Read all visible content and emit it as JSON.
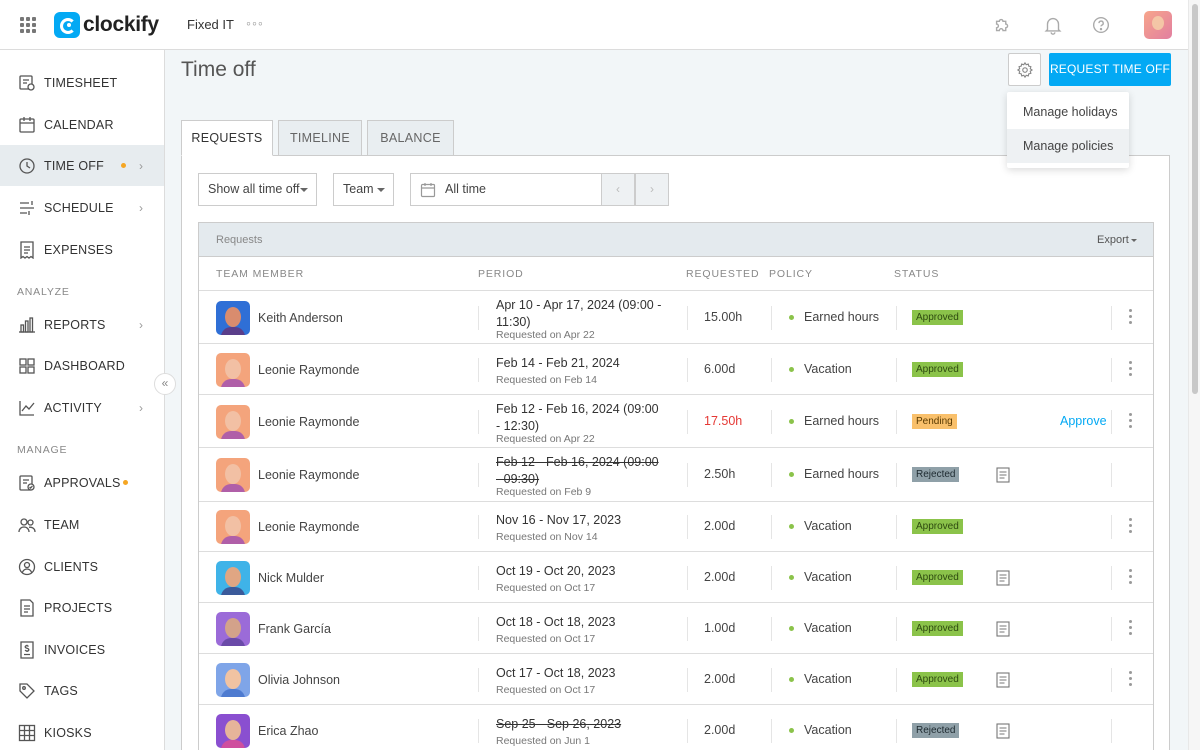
{
  "app": {
    "brand": "clockify",
    "workspace": "Fixed IT",
    "more": "◦◦◦"
  },
  "sidebar": {
    "items": [
      {
        "label": "TIMESHEET"
      },
      {
        "label": "CALENDAR"
      },
      {
        "label": "TIME OFF"
      },
      {
        "label": "SCHEDULE"
      },
      {
        "label": "EXPENSES"
      },
      {
        "label": "REPORTS"
      },
      {
        "label": "DASHBOARD"
      },
      {
        "label": "ACTIVITY"
      },
      {
        "label": "APPROVALS"
      },
      {
        "label": "TEAM"
      },
      {
        "label": "CLIENTS"
      },
      {
        "label": "PROJECTS"
      },
      {
        "label": "INVOICES"
      },
      {
        "label": "TAGS"
      },
      {
        "label": "KIOSKS"
      }
    ],
    "sections": {
      "analyze": "ANALYZE",
      "manage": "MANAGE"
    },
    "collapse": "«"
  },
  "page": {
    "title": "Time off",
    "request_button": "REQUEST TIME OFF",
    "menu": {
      "manage_holidays": "Manage holidays",
      "manage_policies": "Manage policies"
    },
    "tabs": [
      "REQUESTS",
      "TIMELINE",
      "BALANCE"
    ],
    "filters": {
      "show": "Show all time off",
      "team": "Team",
      "date": "All time",
      "prev": "‹",
      "next": "›"
    }
  },
  "table": {
    "caption": "Requests",
    "export": "Export",
    "columns": {
      "member": "TEAM MEMBER",
      "period": "PERIOD",
      "requested": "REQUESTED",
      "policy": "POLICY",
      "status": "STATUS"
    },
    "approve_label": "Approve",
    "rows": [
      {
        "name": "Keith Anderson",
        "period": "Apr 10 - Apr 17, 2024 (09:00 - 11:30)",
        "requested_on": "Requested on Apr 22",
        "amount": "15.00h",
        "policy": "Earned hours",
        "status": "Approved"
      },
      {
        "name": "Leonie Raymonde",
        "period": "Feb 14 - Feb 21, 2024",
        "requested_on": "Requested on Feb 14",
        "amount": "6.00d",
        "policy": "Vacation",
        "status": "Approved"
      },
      {
        "name": "Leonie Raymonde",
        "period": "Feb 12 - Feb 16, 2024 (09:00 - 12:30)",
        "requested_on": "Requested on Apr 22",
        "amount": "17.50h",
        "policy": "Earned hours",
        "status": "Pending"
      },
      {
        "name": "Leonie Raymonde",
        "period": "Feb 12 - Feb 16, 2024 (09:00 - 09:30)",
        "requested_on": "Requested on Feb 9",
        "amount": "2.50h",
        "policy": "Earned hours",
        "status": "Rejected"
      },
      {
        "name": "Leonie Raymonde",
        "period": "Nov 16 - Nov 17, 2023",
        "requested_on": "Requested on Nov 14",
        "amount": "2.00d",
        "policy": "Vacation",
        "status": "Approved"
      },
      {
        "name": "Nick Mulder",
        "period": "Oct 19 - Oct 20, 2023",
        "requested_on": "Requested on Oct 17",
        "amount": "2.00d",
        "policy": "Vacation",
        "status": "Approved"
      },
      {
        "name": "Frank García",
        "period": "Oct 18 - Oct 18, 2023",
        "requested_on": "Requested on Oct 17",
        "amount": "1.00d",
        "policy": "Vacation",
        "status": "Approved"
      },
      {
        "name": "Olivia Johnson",
        "period": "Oct 17 - Oct 18, 2023",
        "requested_on": "Requested on Oct 17",
        "amount": "2.00d",
        "policy": "Vacation",
        "status": "Approved"
      },
      {
        "name": "Erica Zhao",
        "period": "Sep 25 - Sep 26, 2023",
        "requested_on": "Requested on Jun 1",
        "amount": "2.00d",
        "policy": "Vacation",
        "status": "Rejected"
      }
    ]
  },
  "colors": {
    "accent": "#03a9f4",
    "approved": "#8bc34a",
    "pending": "#f9c06b",
    "rejected": "#8fa0a8",
    "alert": "#f5a623"
  }
}
